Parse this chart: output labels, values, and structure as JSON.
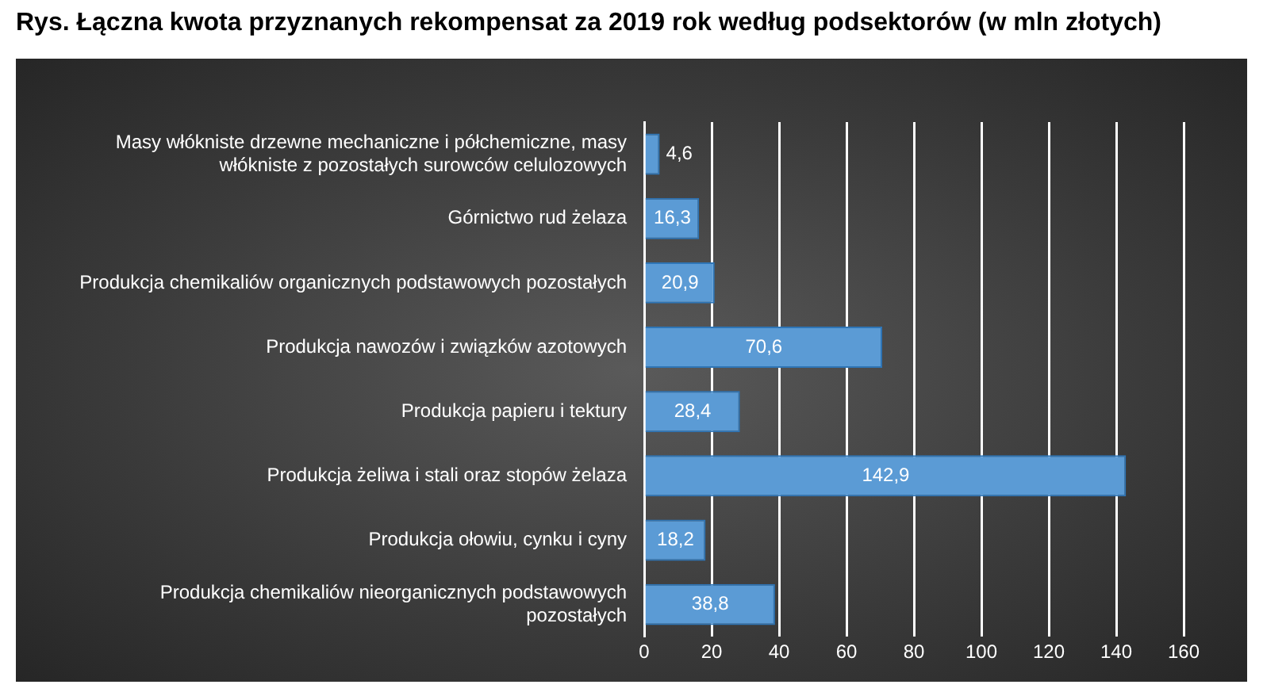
{
  "chart_data": {
    "type": "bar",
    "orientation": "horizontal",
    "title": "Rys. Łączna kwota przyznanych rekompensat za 2019 rok według podsektorów (w mln złotych)",
    "categories": [
      "Masy włókniste drzewne mechaniczne i półchemiczne, masy włókniste z pozostałych surowców celulozowych",
      "Górnictwo rud żelaza",
      "Produkcja chemikaliów organicznych podstawowych pozostałych",
      "Produkcja nawozów i związków azotowych",
      "Produkcja papieru i tektury",
      "Produkcja żeliwa i stali oraz stopów żelaza",
      "Produkcja ołowiu, cynku i cyny",
      "Produkcja chemikaliów nieorganicznych podstawowych pozostałych"
    ],
    "values": [
      4.6,
      16.3,
      20.9,
      70.6,
      28.4,
      142.9,
      18.2,
      38.8
    ],
    "value_labels": [
      "4,6",
      "16,3",
      "20,9",
      "70,6",
      "28,4",
      "142,9",
      "18,2",
      "38,8"
    ],
    "color": "#5b9bd5",
    "xlim": [
      0,
      160
    ],
    "xticks": [
      0,
      20,
      40,
      60,
      80,
      100,
      120,
      140,
      160
    ],
    "grid": "x",
    "legend": false
  }
}
